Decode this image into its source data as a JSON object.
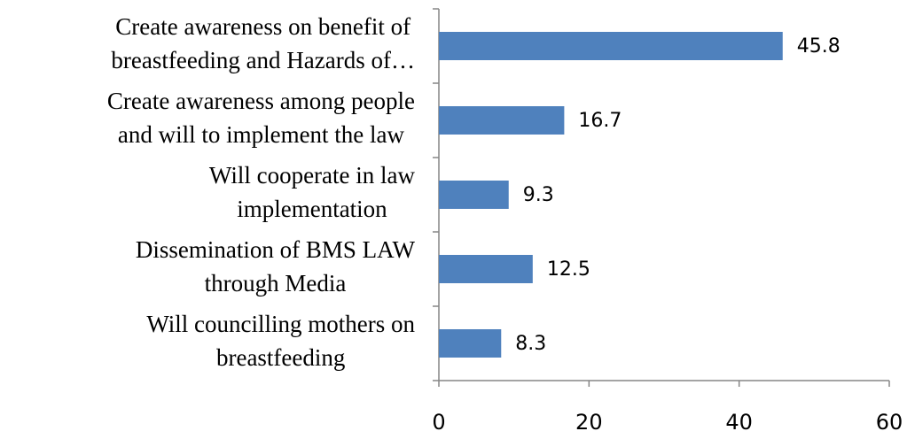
{
  "chart_data": {
    "type": "bar",
    "orientation": "horizontal",
    "categories": [
      [
        "Create awareness on benefit of",
        "breastfeeding  and Hazards of…"
      ],
      [
        "Create awareness among people",
        "and will to implement the law"
      ],
      [
        "Will cooperate in law",
        "implementation"
      ],
      [
        "Dissemination of BMS LAW",
        "through Media"
      ],
      [
        "Will  councilling mothers on",
        "breastfeeding"
      ]
    ],
    "values": [
      45.8,
      16.7,
      9.3,
      12.5,
      8.3
    ],
    "color": "#4f81bd",
    "xlim": [
      0,
      60
    ],
    "xticks": [
      0,
      20,
      40,
      60
    ],
    "grid": false
  }
}
